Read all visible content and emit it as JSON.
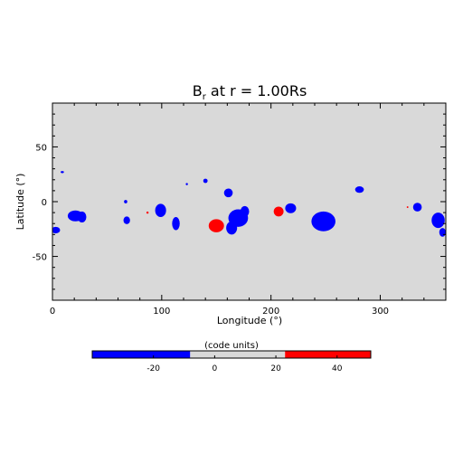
{
  "chart_data": {
    "type": "heatmap",
    "title": "B",
    "title_subscript": "r",
    "title_rest": " at r = 1.00Rs",
    "xlabel": "Longitude (°)",
    "ylabel": "Latitude (°)",
    "xlim": [
      0,
      360
    ],
    "ylim": [
      -90,
      90
    ],
    "xticks": [
      0,
      100,
      200,
      300
    ],
    "yticks": [
      -50,
      0,
      50
    ],
    "background_color": "#d9d9d9",
    "colors": {
      "negative": "#0000ff",
      "positive": "#ff0000"
    },
    "colorbar": {
      "label": "(code units)",
      "range": [
        -40,
        51
      ],
      "ticks": [
        -20,
        0,
        20,
        40
      ],
      "segments": [
        {
          "from": -40,
          "to": -8,
          "color": "#0000ff"
        },
        {
          "from": -8,
          "to": 23,
          "color": "#d9d9d9"
        },
        {
          "from": 23,
          "to": 51,
          "color": "#ff0000"
        }
      ]
    },
    "regions": [
      {
        "sign": "negative",
        "lon": 3,
        "lat": -26,
        "rlon": 4,
        "rlat": 3
      },
      {
        "sign": "negative",
        "lon": 9,
        "lat": 27,
        "rlon": 1.5,
        "rlat": 1
      },
      {
        "sign": "negative",
        "lon": 21,
        "lat": -13,
        "rlon": 7,
        "rlat": 5
      },
      {
        "sign": "negative",
        "lon": 27,
        "lat": -14,
        "rlon": 4,
        "rlat": 5
      },
      {
        "sign": "negative",
        "lon": 67,
        "lat": 0,
        "rlon": 1.5,
        "rlat": 1.5
      },
      {
        "sign": "negative",
        "lon": 68,
        "lat": -17,
        "rlon": 3,
        "rlat": 3.5
      },
      {
        "sign": "positive",
        "lon": 87,
        "lat": -10,
        "rlon": 1,
        "rlat": 1
      },
      {
        "sign": "negative",
        "lon": 99,
        "lat": -8,
        "rlon": 5,
        "rlat": 6
      },
      {
        "sign": "negative",
        "lon": 113,
        "lat": -20,
        "rlon": 3.5,
        "rlat": 6
      },
      {
        "sign": "negative",
        "lon": 123,
        "lat": 16,
        "rlon": 1,
        "rlat": 1
      },
      {
        "sign": "negative",
        "lon": 140,
        "lat": 19,
        "rlon": 2,
        "rlat": 2
      },
      {
        "sign": "positive",
        "lon": 150,
        "lat": -22,
        "rlon": 7,
        "rlat": 6
      },
      {
        "sign": "negative",
        "lon": 161,
        "lat": 8,
        "rlon": 4,
        "rlat": 4
      },
      {
        "sign": "negative",
        "lon": 170,
        "lat": -15,
        "rlon": 9,
        "rlat": 8
      },
      {
        "sign": "negative",
        "lon": 164,
        "lat": -24,
        "rlon": 5,
        "rlat": 6
      },
      {
        "sign": "negative",
        "lon": 176,
        "lat": -9,
        "rlon": 4,
        "rlat": 5
      },
      {
        "sign": "positive",
        "lon": 207,
        "lat": -9,
        "rlon": 4.5,
        "rlat": 4.5
      },
      {
        "sign": "negative",
        "lon": 218,
        "lat": -6,
        "rlon": 5,
        "rlat": 4.5
      },
      {
        "sign": "negative",
        "lon": 248,
        "lat": -18,
        "rlon": 11,
        "rlat": 9
      },
      {
        "sign": "negative",
        "lon": 281,
        "lat": 11,
        "rlon": 4,
        "rlat": 3
      },
      {
        "sign": "positive",
        "lon": 325,
        "lat": -5,
        "rlon": 0.8,
        "rlat": 0.8
      },
      {
        "sign": "negative",
        "lon": 334,
        "lat": -5,
        "rlon": 4,
        "rlat": 4
      },
      {
        "sign": "negative",
        "lon": 353,
        "lat": -17,
        "rlon": 6,
        "rlat": 7
      },
      {
        "sign": "negative",
        "lon": 357,
        "lat": -28,
        "rlon": 3,
        "rlat": 4
      }
    ]
  }
}
